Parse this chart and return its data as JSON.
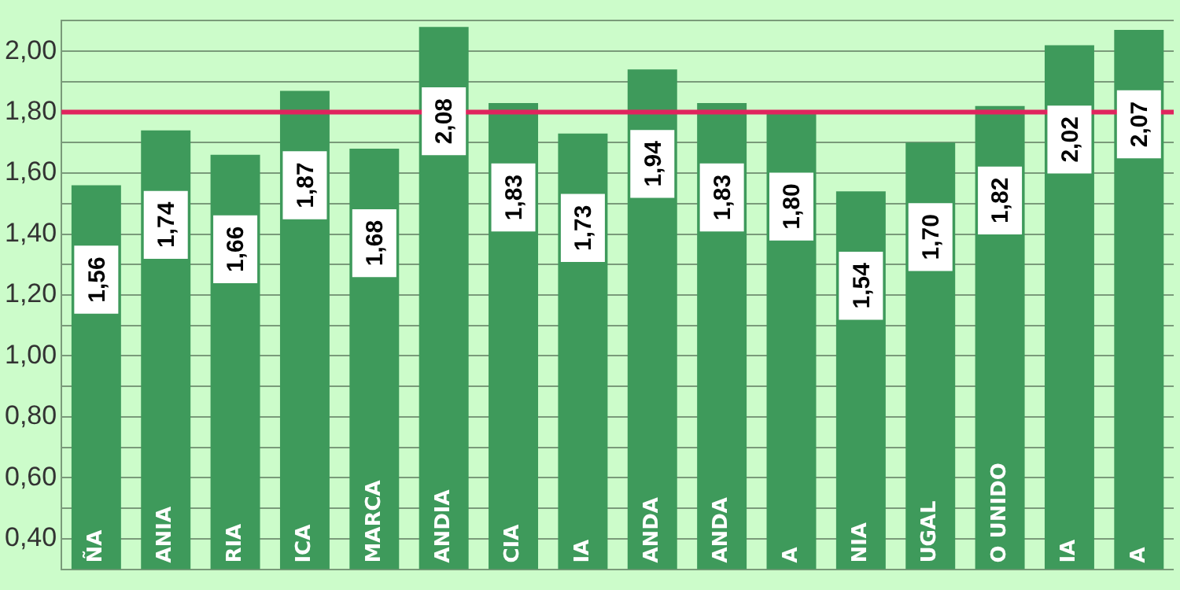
{
  "chart_data": {
    "type": "bar",
    "categories": [
      "ÑA",
      "ANIA",
      "RIA",
      "ICA",
      "MARCA",
      "ANDIA",
      "CIA",
      "IA",
      "ANDA",
      "ANDA",
      "A",
      "NIA",
      "UGAL",
      "O UNIDO",
      "IA",
      "A"
    ],
    "values": [
      1.56,
      1.74,
      1.66,
      1.87,
      1.68,
      2.08,
      1.83,
      1.73,
      1.94,
      1.83,
      1.8,
      1.54,
      1.7,
      1.82,
      2.02,
      2.07
    ],
    "value_labels": [
      "1,56",
      "1,74",
      "1,66",
      "1,87",
      "1,68",
      "2,08",
      "1,83",
      "1,73",
      "1,94",
      "1,83",
      "1,80",
      "1,54",
      "1,70",
      "1,82",
      "2,02",
      "2,07"
    ],
    "color": "#3e9a5b",
    "ylim": [
      0.3,
      2.1
    ],
    "yticks": [
      {
        "value": 0.3,
        "label": null
      },
      {
        "value": 0.4,
        "label": "0,40"
      },
      {
        "value": 0.5,
        "label": null
      },
      {
        "value": 0.6,
        "label": "0,60"
      },
      {
        "value": 0.7,
        "label": null
      },
      {
        "value": 0.8,
        "label": "0,80"
      },
      {
        "value": 0.9,
        "label": null
      },
      {
        "value": 1.0,
        "label": "1,00"
      },
      {
        "value": 1.1,
        "label": null
      },
      {
        "value": 1.2,
        "label": "1,20"
      },
      {
        "value": 1.3,
        "label": null
      },
      {
        "value": 1.4,
        "label": "1,40"
      },
      {
        "value": 1.5,
        "label": null
      },
      {
        "value": 1.6,
        "label": "1,60"
      },
      {
        "value": 1.7,
        "label": null
      },
      {
        "value": 1.8,
        "label": "1,80"
      },
      {
        "value": 1.9,
        "label": null
      },
      {
        "value": 2.0,
        "label": "2,00"
      },
      {
        "value": 2.1,
        "label": null
      }
    ],
    "grid": "y",
    "legend": false,
    "ref_lines": [
      {
        "axis": "y",
        "value": 1.8,
        "color": "#e0245e"
      }
    ]
  }
}
